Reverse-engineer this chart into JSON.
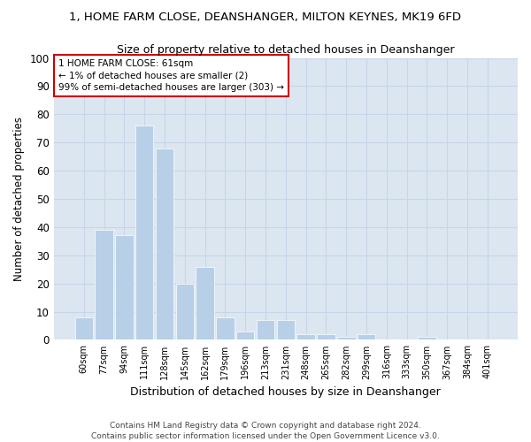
{
  "title": "1, HOME FARM CLOSE, DEANSHANGER, MILTON KEYNES, MK19 6FD",
  "subtitle": "Size of property relative to detached houses in Deanshanger",
  "xlabel": "Distribution of detached houses by size in Deanshanger",
  "ylabel": "Number of detached properties",
  "categories": [
    "60sqm",
    "77sqm",
    "94sqm",
    "111sqm",
    "128sqm",
    "145sqm",
    "162sqm",
    "179sqm",
    "196sqm",
    "213sqm",
    "231sqm",
    "248sqm",
    "265sqm",
    "282sqm",
    "299sqm",
    "316sqm",
    "333sqm",
    "350sqm",
    "367sqm",
    "384sqm",
    "401sqm"
  ],
  "values": [
    8,
    39,
    37,
    76,
    68,
    20,
    26,
    8,
    3,
    7,
    7,
    2,
    2,
    1,
    2,
    0,
    0,
    1,
    0,
    0,
    0
  ],
  "bar_color": "#b8cfe8",
  "ylim": [
    0,
    100
  ],
  "grid_color": "#c8d4e8",
  "background_color": "#dce6f0",
  "annotation_text": "1 HOME FARM CLOSE: 61sqm\n← 1% of detached houses are smaller (2)\n99% of semi-detached houses are larger (303) →",
  "annotation_box_color": "#ffffff",
  "annotation_box_edge_color": "#cc0000",
  "footer": "Contains HM Land Registry data © Crown copyright and database right 2024.\nContains public sector information licensed under the Open Government Licence v3.0."
}
